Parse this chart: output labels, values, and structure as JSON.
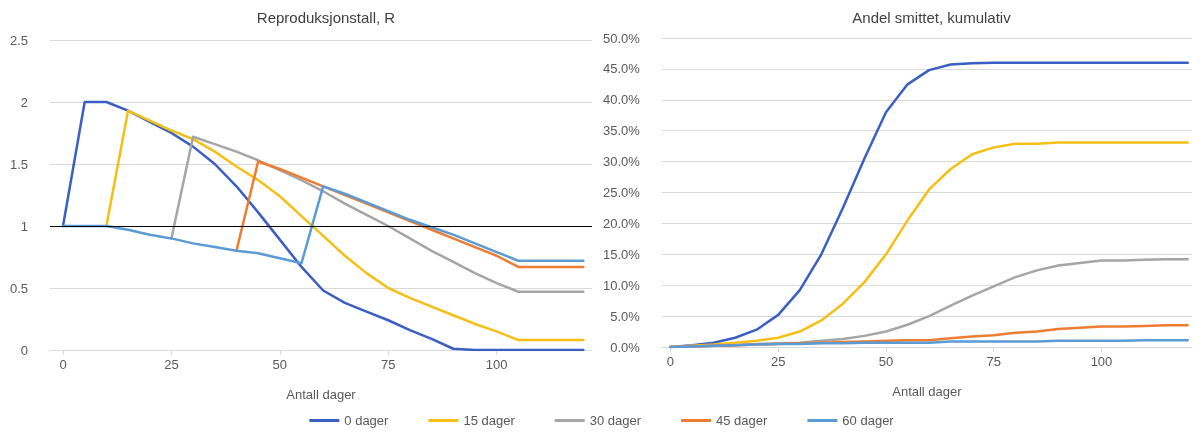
{
  "chart_data": [
    {
      "type": "line",
      "title": "Reproduksjonstall, R",
      "xlabel": "Antall dager",
      "x": [
        0,
        5,
        10,
        15,
        20,
        25,
        30,
        35,
        40,
        45,
        50,
        55,
        60,
        65,
        70,
        75,
        80,
        85,
        90,
        95,
        100,
        105,
        110,
        115,
        120
      ],
      "xlim": [
        -3,
        122
      ],
      "xticks": [
        0,
        25,
        50,
        75,
        100
      ],
      "ylim": [
        0,
        2.5
      ],
      "yticks": [
        0,
        0.5,
        1,
        1.5,
        2,
        2.5
      ],
      "grid": "y",
      "legend": "bottom",
      "marker": "none",
      "line_style": "solid",
      "ref_lines": [
        {
          "axis": "y",
          "value": 1,
          "color": "#000000"
        }
      ],
      "series": [
        {
          "name": "0 dager",
          "color": "#3a5fc4",
          "values": [
            1,
            2,
            2,
            1.93,
            1.84,
            1.75,
            1.64,
            1.5,
            1.32,
            1.11,
            0.89,
            0.67,
            0.48,
            0.38,
            0.31,
            0.24,
            0.16,
            0.09,
            0.01,
            0,
            0,
            0,
            0,
            0,
            0
          ]
        },
        {
          "name": "15 dager",
          "color": "#f5bf16",
          "values": [
            null,
            null,
            1,
            1.93,
            1.85,
            1.77,
            1.7,
            1.6,
            1.48,
            1.37,
            1.24,
            1.08,
            0.92,
            0.76,
            0.62,
            0.5,
            0.42,
            0.35,
            0.28,
            0.21,
            0.15,
            0.08,
            0.08,
            0.08,
            0.08
          ]
        },
        {
          "name": "30 dager",
          "color": "#a5a5a5",
          "values": [
            null,
            null,
            null,
            null,
            null,
            0.9,
            1.72,
            1.66,
            1.6,
            1.53,
            1.45,
            1.37,
            1.28,
            1.18,
            1.09,
            1,
            0.9,
            0.8,
            0.71,
            0.62,
            0.54,
            0.47,
            0.47,
            0.47,
            0.47
          ]
        },
        {
          "name": "45 dager",
          "color": "#ed7d31",
          "values": [
            null,
            null,
            null,
            null,
            null,
            null,
            null,
            null,
            0.8,
            1.52,
            1.46,
            1.39,
            1.32,
            1.25,
            1.18,
            1.11,
            1.04,
            0.97,
            0.9,
            0.83,
            0.76,
            0.67,
            0.67,
            0.67,
            0.67
          ]
        },
        {
          "name": "60 dager",
          "color": "#5b9bd5",
          "values": [
            1,
            1,
            1,
            0.97,
            0.93,
            0.9,
            0.86,
            0.83,
            0.8,
            0.78,
            0.74,
            0.7,
            1.32,
            1.26,
            1.19,
            1.12,
            1.05,
            0.99,
            0.93,
            0.86,
            0.79,
            0.72,
            0.72,
            0.72,
            0.72
          ]
        }
      ]
    },
    {
      "type": "line",
      "title": "Andel smittet, kumulativ",
      "xlabel": "Antall dager",
      "x": [
        0,
        5,
        10,
        15,
        20,
        25,
        30,
        35,
        40,
        45,
        50,
        55,
        60,
        65,
        70,
        75,
        80,
        85,
        90,
        95,
        100,
        105,
        110,
        115,
        120
      ],
      "xlim": [
        -2,
        121
      ],
      "xticks": [
        0,
        25,
        50,
        75,
        100
      ],
      "ylim": [
        0,
        50
      ],
      "yticks": [
        {
          "value": 0,
          "label": "0.0%"
        },
        {
          "value": 5,
          "label": "5.0%"
        },
        {
          "value": 10,
          "label": "10.0%"
        },
        {
          "value": 15,
          "label": "15.0%"
        },
        {
          "value": 20,
          "label": "20.0%"
        },
        {
          "value": 25,
          "label": "25.0%"
        },
        {
          "value": 30,
          "label": "30.0%"
        },
        {
          "value": 35,
          "label": "35.0%"
        },
        {
          "value": 40,
          "label": "40.0%"
        },
        {
          "value": 45,
          "label": "45.0%"
        },
        {
          "value": 50,
          "label": "50.0%"
        }
      ],
      "grid": "y",
      "marker": "none",
      "line_style": "solid",
      "series": [
        {
          "color": "#3a5fc4",
          "values": [
            0,
            0.3,
            0.7,
            1.5,
            2.8,
            5.2,
            9.2,
            15,
            22.5,
            30.5,
            38,
            42.5,
            44.8,
            45.7,
            45.9,
            46,
            46,
            46,
            46,
            46,
            46,
            46,
            46,
            46,
            46
          ]
        },
        {
          "color": "#f5bf16",
          "values": [
            0,
            0.2,
            0.4,
            0.7,
            1,
            1.5,
            2.5,
            4.3,
            7,
            10.5,
            15,
            20.5,
            25.5,
            28.8,
            31.2,
            32.3,
            32.9,
            32.9,
            33.1,
            33.1,
            33.1,
            33.1,
            33.1,
            33.1,
            33.1
          ]
        },
        {
          "color": "#a5a5a5",
          "values": [
            0,
            0.1,
            0.2,
            0.3,
            0.5,
            0.6,
            0.7,
            1,
            1.3,
            1.8,
            2.5,
            3.6,
            5,
            6.7,
            8.3,
            9.8,
            11.3,
            12.4,
            13.2,
            13.6,
            14,
            14,
            14.1,
            14.2,
            14.2
          ]
        },
        {
          "color": "#ed7d31",
          "values": [
            0,
            0.1,
            0.2,
            0.3,
            0.4,
            0.5,
            0.6,
            0.7,
            0.8,
            0.9,
            1,
            1.1,
            1.1,
            1.4,
            1.7,
            1.9,
            2.3,
            2.5,
            2.9,
            3.1,
            3.3,
            3.3,
            3.4,
            3.5,
            3.5
          ]
        },
        {
          "color": "#5b9bd5",
          "values": [
            0,
            0.1,
            0.2,
            0.3,
            0.4,
            0.5,
            0.5,
            0.6,
            0.6,
            0.7,
            0.7,
            0.7,
            0.7,
            0.9,
            0.9,
            0.9,
            0.9,
            0.9,
            1,
            1,
            1,
            1,
            1.1,
            1.1,
            1.1
          ]
        }
      ]
    }
  ]
}
